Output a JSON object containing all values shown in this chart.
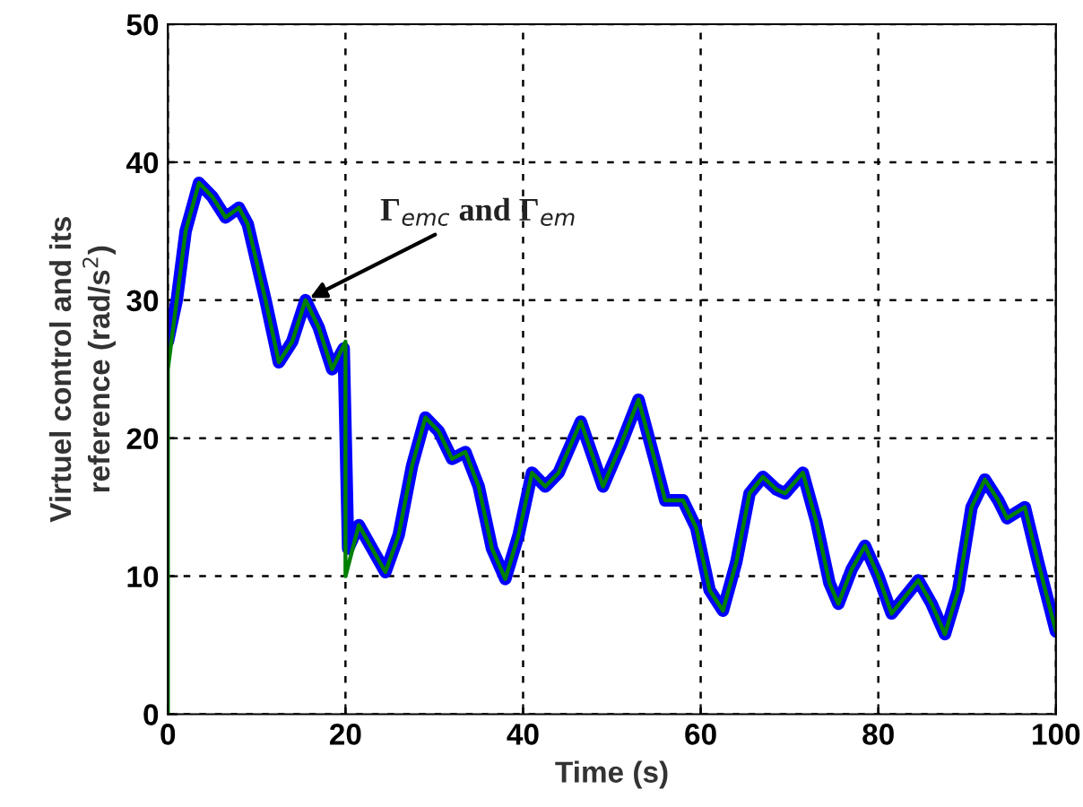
{
  "chart_data": {
    "type": "line",
    "xlabel": "Time (s)",
    "ylabel": "Virtuel control and its\nreference (rad/s$^{2}$)",
    "xlim": [
      0,
      100
    ],
    "ylim": [
      0,
      50
    ],
    "xticks": [
      0,
      20,
      40,
      60,
      80,
      100
    ],
    "yticks": [
      0,
      10,
      20,
      30,
      40,
      50
    ],
    "grid": true,
    "line_style": "solid",
    "series": [
      {
        "color": "#0000ff",
        "x": [
          0,
          1,
          2,
          3.5,
          5,
          6.5,
          8,
          9,
          11,
          12.5,
          14,
          15.5,
          17,
          18.5,
          19.8,
          20.3,
          21.5,
          23,
          24.5,
          26,
          27.5,
          29,
          30.5,
          32,
          33.5,
          35,
          36.5,
          38,
          39.5,
          41,
          42.5,
          44,
          46.5,
          49,
          51,
          53,
          55,
          56,
          58,
          59.5,
          61,
          62.5,
          64,
          65.5,
          67,
          68.5,
          69.5,
          71.5,
          73,
          74.5,
          75.5,
          77,
          78.5,
          80,
          81.5,
          83,
          84.5,
          86,
          87.5,
          89,
          90.5,
          92,
          93.5,
          94.5,
          96.5,
          98,
          100
        ],
        "values": [
          27,
          30,
          35,
          38.5,
          37.5,
          36,
          36.7,
          35.5,
          30,
          25.5,
          27,
          30,
          28,
          25,
          26.5,
          12,
          13.7,
          12,
          10.3,
          13,
          18,
          21.5,
          20.5,
          18.5,
          19,
          16.5,
          12,
          9.8,
          13,
          17.5,
          16.5,
          17.5,
          21.2,
          16.5,
          19.5,
          22.8,
          18,
          15.5,
          15.5,
          13.5,
          9,
          7.5,
          11,
          16,
          17.2,
          16.3,
          16,
          17.5,
          14,
          9.5,
          8,
          10.5,
          12.2,
          10,
          7.3,
          8.5,
          9.7,
          8,
          5.8,
          9,
          15,
          17,
          15.5,
          14.2,
          15,
          11,
          6
        ]
      },
      {
        "color": "#008000",
        "x": [
          0,
          0,
          1,
          2,
          3.5,
          5,
          6.5,
          8,
          9,
          11,
          12.5,
          14,
          15.5,
          17,
          18.5,
          20,
          20,
          21.5,
          23,
          24.5,
          26,
          27.5,
          29,
          30.5,
          32,
          33.5,
          35,
          36.5,
          38,
          39.5,
          41,
          42.5,
          44,
          46.5,
          49,
          51,
          53,
          55,
          56,
          58,
          59.5,
          61,
          62.5,
          64,
          65.5,
          67,
          68.5,
          69.5,
          71.5,
          73,
          74.5,
          75.5,
          77,
          78.5,
          80,
          81.5,
          83,
          84.5,
          86,
          87.5,
          89,
          90.5,
          92,
          93.5,
          94.5,
          96.5,
          98,
          100
        ],
        "values": [
          0,
          25,
          30,
          35,
          38.5,
          37.5,
          36,
          36.7,
          35.5,
          30,
          25.5,
          27,
          30,
          28,
          25,
          27,
          10,
          13.7,
          12,
          10.3,
          13,
          18,
          21.5,
          20.5,
          18.5,
          19,
          16.5,
          12,
          9.8,
          13,
          17.5,
          16.5,
          17.5,
          21.2,
          16.5,
          19.5,
          22.8,
          18,
          15.5,
          15.5,
          13.5,
          9,
          7.5,
          11,
          16,
          17.2,
          16.3,
          16,
          17.5,
          14,
          9.5,
          8,
          10.5,
          12.2,
          10,
          7.3,
          8.5,
          9.7,
          8,
          5.8,
          9,
          15,
          17,
          15.5,
          14.2,
          15,
          11,
          6
        ]
      }
    ],
    "annotations": [
      {
        "text": "Γ$_{emc}$ and Γ$_{em}$",
        "x": 15.5,
        "y": 30
      }
    ]
  }
}
